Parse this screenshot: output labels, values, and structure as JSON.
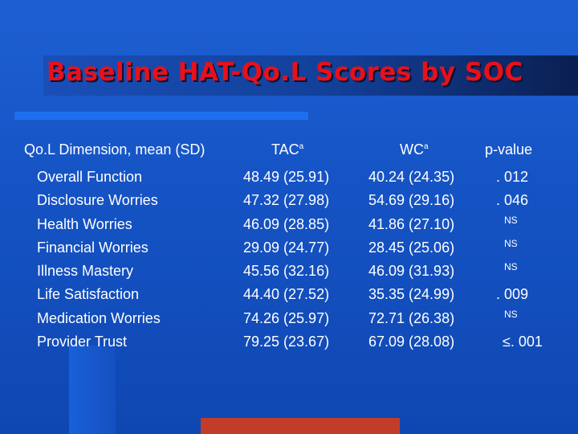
{
  "title": "Baseline HAT-Qo.L Scores by SOC",
  "headers": {
    "dimension": "Qo.L Dimension, mean (SD)",
    "tac": "TAC",
    "tac_sup": "a",
    "wc": "WC",
    "wc_sup": "a",
    "pvalue": "p-value"
  },
  "rows": [
    {
      "dimension": "Overall Function",
      "tac": "48.49 (25.91)",
      "wc": "40.24 (24.35)",
      "p": ". 012"
    },
    {
      "dimension": "Disclosure Worries",
      "tac": "47.32 (27.98)",
      "wc": "54.69 (29.16)",
      "p": ". 046"
    },
    {
      "dimension": "Health Worries",
      "tac": "46.09 (28.85)",
      "wc": "41.86 (27.10)",
      "p": "NS"
    },
    {
      "dimension": "Financial Worries",
      "tac": "29.09 (24.77)",
      "wc": "28.45 (25.06)",
      "p": "NS"
    },
    {
      "dimension": "Illness Mastery",
      "tac": "45.56 (32.16)",
      "wc": "46.09 (31.93)",
      "p": "NS"
    },
    {
      "dimension": "Life Satisfaction",
      "tac": "44.40 (27.52)",
      "wc": "35.35 (24.99)",
      "p": ". 009"
    },
    {
      "dimension": "Medication Worries",
      "tac": "74.26 (25.97)",
      "wc": "72.71 (26.38)",
      "p": "NS"
    },
    {
      "dimension": "Provider Trust",
      "tac": "79.25 (23.67)",
      "wc": "67.09 (28.08)",
      "p": "≤. 001"
    }
  ],
  "colors": {
    "background": "#1553c4",
    "title": "#e8101a",
    "text": "#ffffff",
    "accent_bar": "#1e6ef0",
    "bottom_bar": "#c23c2a"
  }
}
